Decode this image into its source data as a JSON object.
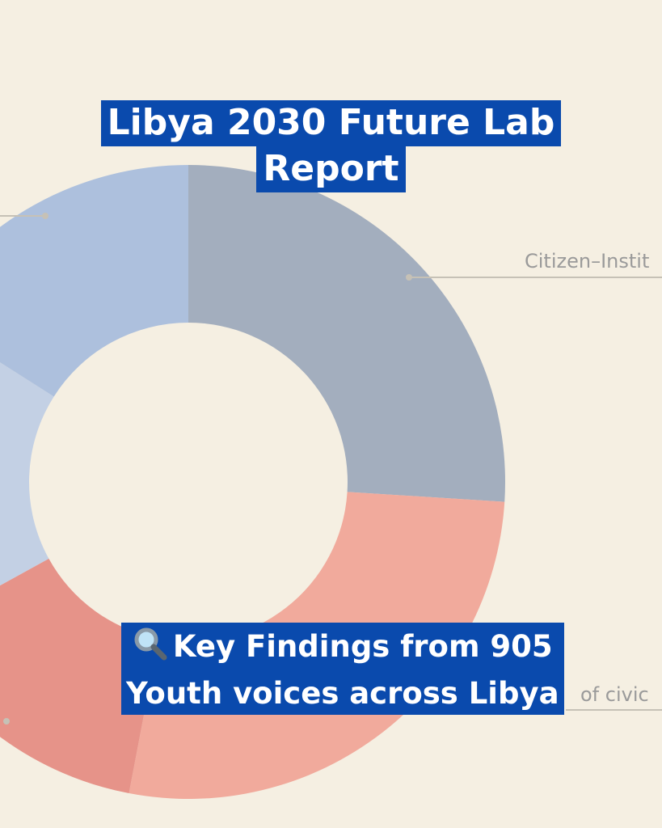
{
  "title": {
    "line1": "Libya 2030 Future Lab",
    "line2": "Report"
  },
  "caption": {
    "icon": "magnifying-glass-icon",
    "line1": "Key Findings from 905",
    "line2": "Youth voices across Libya"
  },
  "chart_data": {
    "type": "pie",
    "donut": true,
    "slices": [
      {
        "label": "Citizen–Instit",
        "value": 26,
        "color": "#a3aebe"
      },
      {
        "label": "of civic",
        "value": 27,
        "color": "#f1aa9c"
      },
      {
        "label": "",
        "value": 14,
        "color": "#e69389"
      },
      {
        "label": "",
        "value": 17,
        "color": "#c3d0e4"
      },
      {
        "label": "",
        "value": 16,
        "color": "#adc0dd"
      }
    ]
  }
}
